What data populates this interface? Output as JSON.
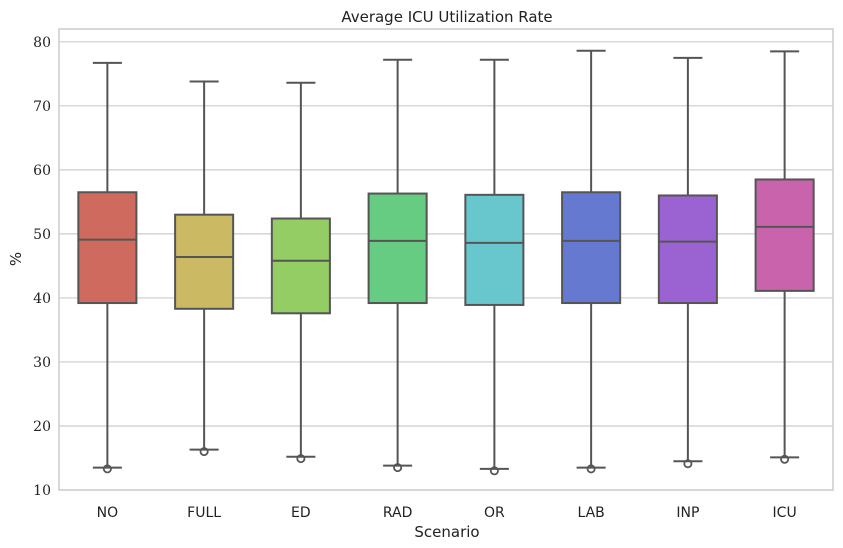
{
  "chart_data": {
    "type": "box",
    "title": "Average ICU Utilization Rate",
    "xlabel": "Scenario",
    "ylabel": "%",
    "ylim": [
      10,
      82
    ],
    "yticks": [
      10,
      20,
      30,
      40,
      50,
      60,
      70,
      80
    ],
    "grid": "horizontal",
    "categories": [
      "NO",
      "FULL",
      "ED",
      "RAD",
      "OR",
      "LAB",
      "INP",
      "ICU"
    ],
    "colors": [
      "#cf6b5e",
      "#cbb963",
      "#94cd64",
      "#66cc82",
      "#67c7cc",
      "#6679d1",
      "#9b63d1",
      "#c963ac"
    ],
    "boxes": [
      {
        "whisker_low": 13.5,
        "q1": 39.2,
        "median": 49.1,
        "q3": 56.5,
        "whisker_high": 76.7,
        "outliers": [
          13.3
        ]
      },
      {
        "whisker_low": 16.3,
        "q1": 38.3,
        "median": 46.4,
        "q3": 53.0,
        "whisker_high": 73.8,
        "outliers": [
          16.0
        ]
      },
      {
        "whisker_low": 15.2,
        "q1": 37.6,
        "median": 45.8,
        "q3": 52.4,
        "whisker_high": 73.6,
        "outliers": [
          14.9
        ]
      },
      {
        "whisker_low": 13.8,
        "q1": 39.2,
        "median": 48.9,
        "q3": 56.3,
        "whisker_high": 77.2,
        "outliers": [
          13.5
        ]
      },
      {
        "whisker_low": 13.3,
        "q1": 38.9,
        "median": 48.6,
        "q3": 56.1,
        "whisker_high": 77.2,
        "outliers": [
          13.0
        ]
      },
      {
        "whisker_low": 13.5,
        "q1": 39.2,
        "median": 48.9,
        "q3": 56.5,
        "whisker_high": 78.6,
        "outliers": [
          13.3
        ]
      },
      {
        "whisker_low": 14.5,
        "q1": 39.2,
        "median": 48.8,
        "q3": 56.0,
        "whisker_high": 77.5,
        "outliers": [
          14.1
        ]
      },
      {
        "whisker_low": 15.1,
        "q1": 41.1,
        "median": 51.1,
        "q3": 58.5,
        "whisker_high": 78.5,
        "outliers": [
          14.8
        ]
      }
    ]
  }
}
